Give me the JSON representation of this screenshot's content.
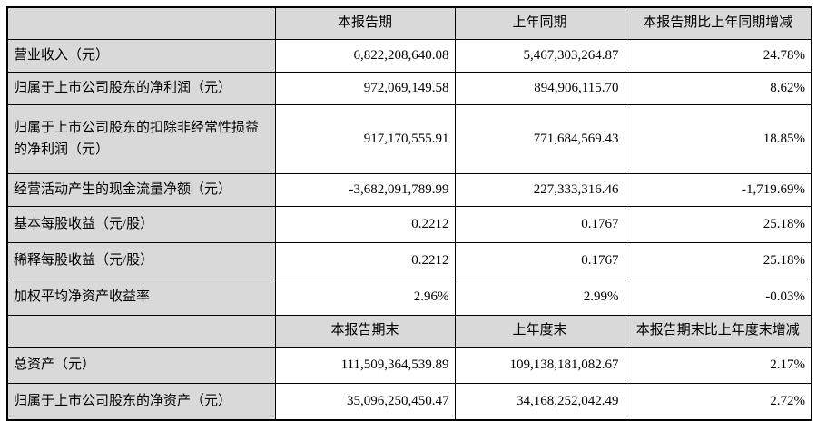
{
  "colors": {
    "header_bg": "#d9d9d9",
    "border": "#000000",
    "text": "#000000",
    "cell_bg": "#ffffff"
  },
  "table": {
    "header_period": [
      "",
      "本报告期",
      "上年同期",
      "本报告期比上年同期增减"
    ],
    "rows_period": [
      {
        "label": "营业收入（元）",
        "current": "6,822,208,640.08",
        "prior": "5,467,303,264.87",
        "change": "24.78%"
      },
      {
        "label": "归属于上市公司股东的净利润（元）",
        "current": "972,069,149.58",
        "prior": "894,906,115.70",
        "change": "8.62%"
      },
      {
        "label": "归属于上市公司股东的扣除非经常性损益的净利润（元）",
        "current": "917,170,555.91",
        "prior": "771,684,569.43",
        "change": "18.85%"
      },
      {
        "label": "经营活动产生的现金流量净额（元）",
        "current": "-3,682,091,789.99",
        "prior": "227,333,316.46",
        "change": "-1,719.69%"
      },
      {
        "label": "基本每股收益（元/股）",
        "current": "0.2212",
        "prior": "0.1767",
        "change": "25.18%"
      },
      {
        "label": "稀释每股收益（元/股）",
        "current": "0.2212",
        "prior": "0.1767",
        "change": "25.18%"
      },
      {
        "label": "加权平均净资产收益率",
        "current": "2.96%",
        "prior": "2.99%",
        "change": "-0.03%"
      }
    ],
    "header_balance": [
      "",
      "本报告期末",
      "上年度末",
      "本报告期末比上年度末增减"
    ],
    "rows_balance": [
      {
        "label": "总资产（元）",
        "current": "111,509,364,539.89",
        "prior": "109,138,181,082.67",
        "change": "2.17%"
      },
      {
        "label": "归属于上市公司股东的净资产（元）",
        "current": "35,096,250,450.47",
        "prior": "34,168,252,042.49",
        "change": "2.72%"
      }
    ]
  }
}
